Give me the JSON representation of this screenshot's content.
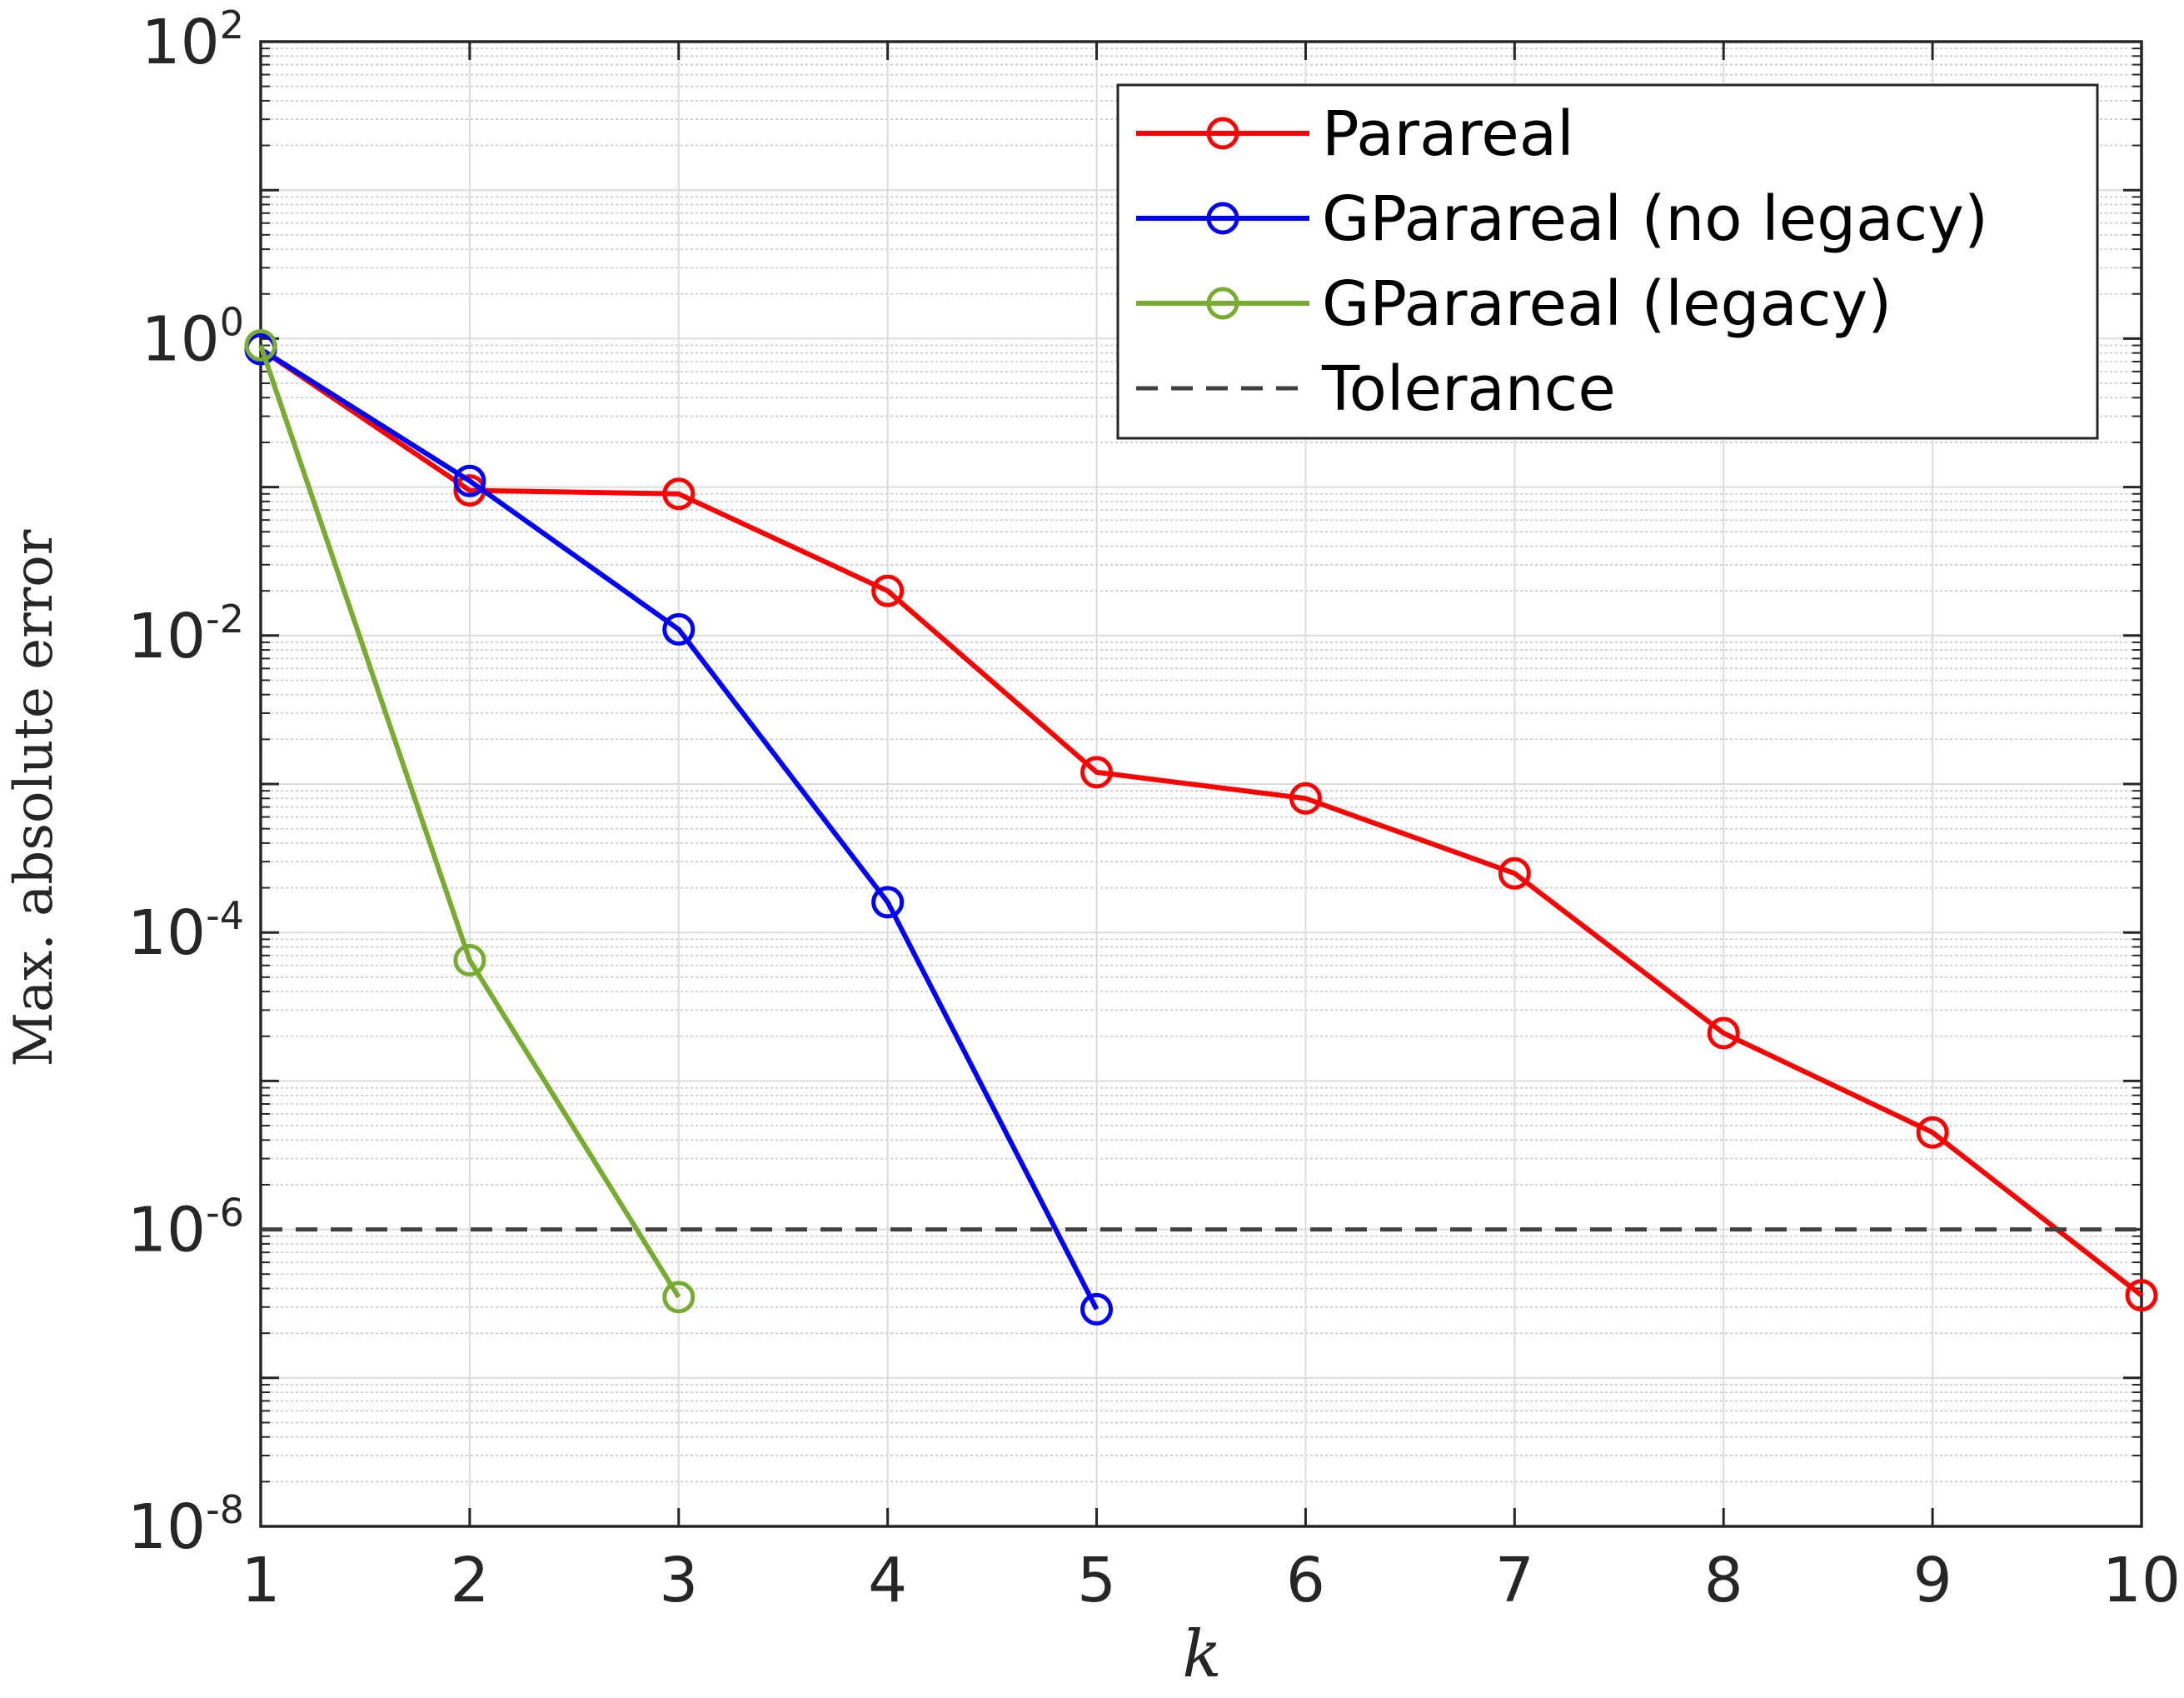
{
  "chart_data": {
    "type": "line",
    "yscale": "log",
    "title": "",
    "xlabel": "k",
    "ylabel": "Max. absolute error",
    "xlim": [
      1,
      10
    ],
    "ylim": [
      1e-08,
      100
    ],
    "xticks": [
      1,
      2,
      3,
      4,
      5,
      6,
      7,
      8,
      9,
      10
    ],
    "xtick_labels": [
      "1",
      "2",
      "3",
      "4",
      "5",
      "6",
      "7",
      "8",
      "9",
      "10"
    ],
    "yticks": [
      {
        "value": 1e-08,
        "base": "10",
        "exp": "-8"
      },
      {
        "value": 1e-06,
        "base": "10",
        "exp": "-6"
      },
      {
        "value": 0.0001,
        "base": "10",
        "exp": "-4"
      },
      {
        "value": 0.01,
        "base": "10",
        "exp": "-2"
      },
      {
        "value": 1,
        "base": "10",
        "exp": "0"
      },
      {
        "value": 100,
        "base": "10",
        "exp": "2"
      }
    ],
    "grid": true,
    "legend_position": "top-right",
    "series": [
      {
        "name": "Parareal",
        "color": "#ff0000",
        "style": "solid",
        "marker": "circle",
        "x": [
          1,
          2,
          3,
          4,
          5,
          6,
          7,
          8,
          9,
          10
        ],
        "y": [
          0.85,
          0.095,
          0.09,
          0.02,
          0.0012,
          0.0008,
          0.00025,
          2.1e-05,
          4.5e-06,
          3.6e-07
        ]
      },
      {
        "name": "GParareal (no legacy)",
        "color": "#0000ff",
        "style": "solid",
        "marker": "circle",
        "x": [
          1,
          2,
          3,
          4,
          5
        ],
        "y": [
          0.85,
          0.11,
          0.011,
          0.00016,
          2.9e-07
        ]
      },
      {
        "name": "GParareal (legacy)",
        "color": "#77ac30",
        "style": "solid",
        "marker": "circle",
        "x": [
          1,
          2,
          3
        ],
        "y": [
          0.9,
          6.5e-05,
          3.5e-07
        ]
      },
      {
        "name": "Tolerance",
        "color": "#404040",
        "style": "dashed",
        "marker": "none",
        "x": [
          1,
          10
        ],
        "y": [
          1e-06,
          1e-06
        ]
      }
    ]
  }
}
